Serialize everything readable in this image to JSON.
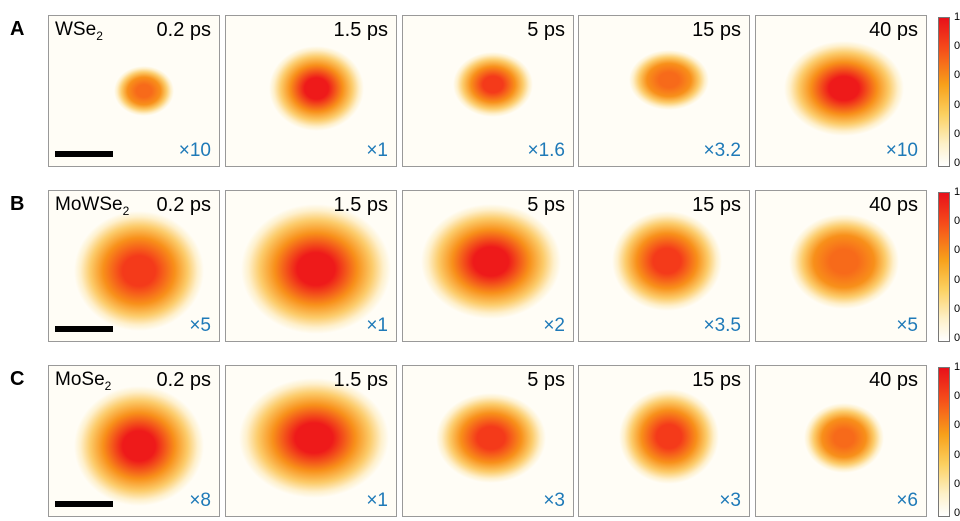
{
  "rows": [
    {
      "label": "A",
      "material": "WSe",
      "subscript": "2",
      "panels": [
        {
          "time": "0.2 ps",
          "scale": "×10"
        },
        {
          "time": "1.5 ps",
          "scale": "×1"
        },
        {
          "time": "5 ps",
          "scale": "×1.6"
        },
        {
          "time": "15 ps",
          "scale": "×3.2"
        },
        {
          "time": "40 ps",
          "scale": "×10"
        }
      ],
      "colorbar": [
        "1",
        "0",
        "0",
        "0",
        "0",
        "0"
      ]
    },
    {
      "label": "B",
      "material": "MoWSe",
      "subscript": "2",
      "panels": [
        {
          "time": "0.2 ps",
          "scale": "×5"
        },
        {
          "time": "1.5 ps",
          "scale": "×1"
        },
        {
          "time": "5 ps",
          "scale": "×2"
        },
        {
          "time": "15 ps",
          "scale": "×3.5"
        },
        {
          "time": "40 ps",
          "scale": "×5"
        }
      ],
      "colorbar": [
        "1",
        "0",
        "0",
        "0",
        "0",
        "0"
      ]
    },
    {
      "label": "C",
      "material": "MoSe",
      "subscript": "2",
      "panels": [
        {
          "time": "0.2 ps",
          "scale": "×8"
        },
        {
          "time": "1.5 ps",
          "scale": "×1"
        },
        {
          "time": "5 ps",
          "scale": "×3"
        },
        {
          "time": "15 ps",
          "scale": "×3"
        },
        {
          "time": "40 ps",
          "scale": "×6"
        }
      ],
      "colorbar": [
        "1",
        "0",
        "0",
        "0",
        "0",
        "0"
      ]
    }
  ]
}
